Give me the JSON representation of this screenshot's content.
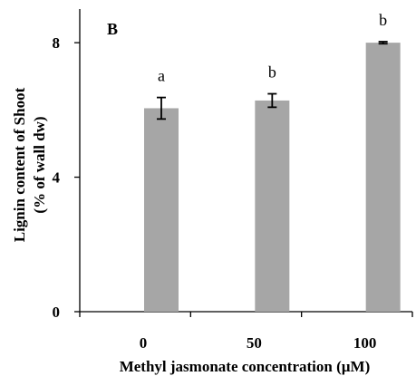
{
  "chart_data": {
    "type": "bar",
    "panel_label": "B",
    "categories": [
      "0",
      "50",
      "100"
    ],
    "values": [
      6.05,
      6.28,
      8.0
    ],
    "errors": [
      0.32,
      0.2,
      0.03
    ],
    "significance": [
      "a",
      "b",
      "b"
    ],
    "xlabel": "Methyl  jasmonate concentration (µM)",
    "ylabel_line1": "Lignin content of Shoot",
    "ylabel_line2": "(% of wall dw)",
    "yticks": [
      "0",
      "4",
      "8"
    ],
    "ylim": [
      0,
      9
    ],
    "grid": false,
    "bar_color": "#a6a6a6",
    "axis_color": "#000000"
  }
}
